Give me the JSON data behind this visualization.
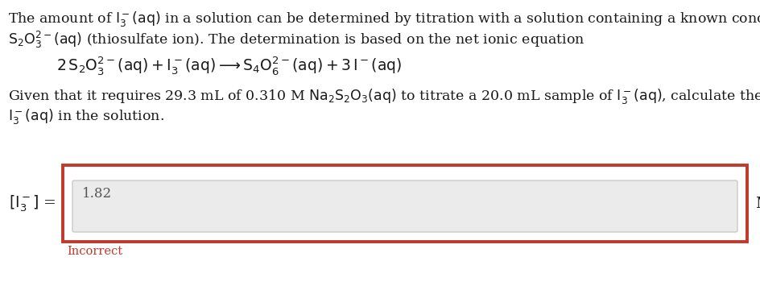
{
  "bg_color": "#ffffff",
  "text_color": "#1a1a1a",
  "red_color": "#c0392b",
  "incorrect_color": "#c0392b",
  "font_size_body": 12.5,
  "font_size_eq": 13.5,
  "font_size_label": 13.5,
  "font_size_answer": 12,
  "font_size_incorrect": 10.5,
  "para1_line1": "The amount of $\\mathrm{I_3^-(aq)}$ in a solution can be determined by titration with a solution containing a known concentration of",
  "para1_line2": "$\\mathrm{S_2O_3^{2-}(aq)}$ (thiosulfate ion). The determination is based on the net ionic equation",
  "equation": "$\\mathrm{2\\,S_2O_3^{2-}(aq) + I_3^-(aq) \\longrightarrow S_4O_6^{2-}(aq) + 3\\,I^-(aq)}$",
  "para2_line1": "Given that it requires 29.3 mL of 0.310 M $\\mathrm{Na_2S_2O_3(aq)}$ to titrate a 20.0 mL sample of $\\mathrm{I_3^-(aq)}$, calculate the molarity of",
  "para2_line2": "$\\mathrm{I_3^-(aq)}$ in the solution.",
  "label_left": "$\\mathrm{[I_3^-]}$ =",
  "answer": "1.82",
  "label_right": "M",
  "incorrect_text": "Incorrect"
}
